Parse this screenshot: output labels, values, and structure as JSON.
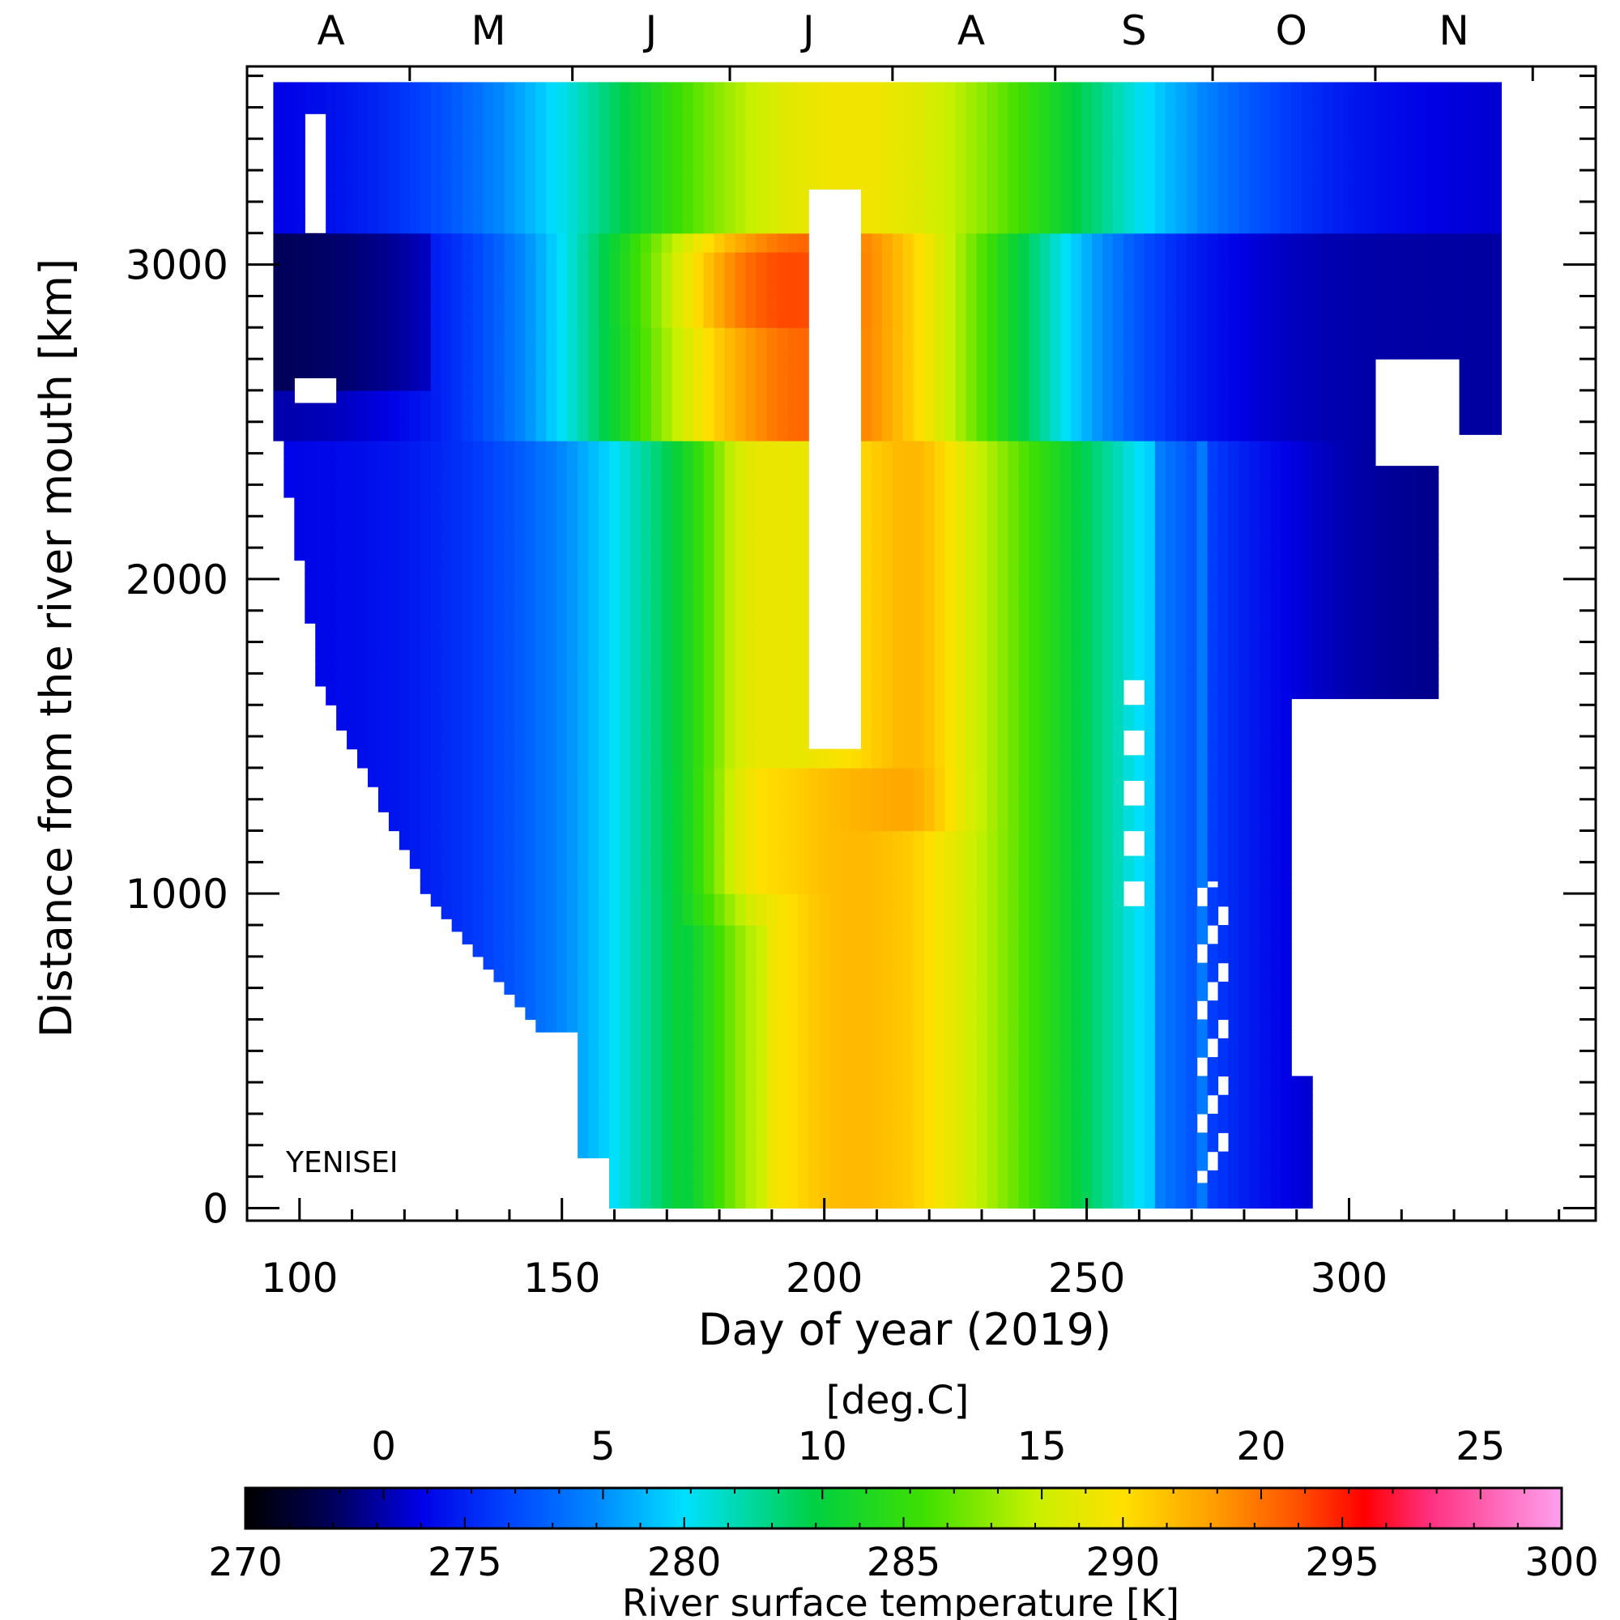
{
  "chart_data": {
    "type": "heatmap",
    "title": "",
    "river_label": "YENISEI",
    "xlabel": "Day of year (2019)",
    "ylabel": "Distance from the river mouth [km]",
    "xlim": [
      90,
      347
    ],
    "ylim": [
      -40,
      3630
    ],
    "xticks": [
      100,
      150,
      200,
      250,
      300
    ],
    "yticks": [
      0,
      1000,
      2000,
      3000
    ],
    "month_labels": [
      "A",
      "M",
      "J",
      "J",
      "A",
      "S",
      "O",
      "N"
    ],
    "month_label_days": [
      106,
      136,
      167,
      197,
      228,
      259,
      289,
      320
    ],
    "month_boundary_days": [
      121,
      152,
      182,
      213,
      244,
      274,
      305,
      335
    ],
    "colorbar": {
      "kelvin_label": "River surface temperature [K]",
      "celsius_label": "[deg.C]",
      "kelvin_range": [
        270,
        300
      ],
      "kelvin_ticks": [
        270,
        275,
        280,
        285,
        290,
        295,
        300
      ],
      "celsius_ticks": [
        0,
        5,
        10,
        15,
        20,
        25
      ],
      "stops_kelvin": [
        270,
        272,
        274,
        276,
        278,
        280,
        283,
        285.5,
        288,
        290,
        292,
        294,
        295.5,
        297,
        300
      ],
      "stops_colors": [
        "#000000",
        "#00005a",
        "#0000e6",
        "#0044ff",
        "#0088ff",
        "#00e0ff",
        "#00d040",
        "#40e000",
        "#c8f000",
        "#ffe000",
        "#ffa000",
        "#ff5000",
        "#ff0000",
        "#ff3080",
        "#ffa0f0"
      ]
    },
    "field": {
      "day_start": 95,
      "day_end": 330,
      "dist_start": 0,
      "dist_end": 3580,
      "day_step": 2,
      "dist_step": 20,
      "river_segments_km": [
        [
          0,
          2440
        ],
        [
          2440,
          3580
        ]
      ],
      "upper_reach_peak_temperature_K": 294,
      "lower_reach_peak_temperature_K": 291,
      "peak_days": [
        185,
        218
      ]
    }
  }
}
